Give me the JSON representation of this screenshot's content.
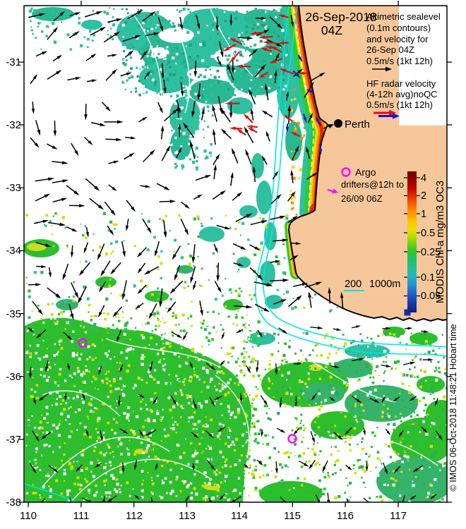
{
  "header": {
    "date": "26-Sep-2018",
    "time": "04Z"
  },
  "legends": {
    "altimetry": {
      "l1": "Altimetric sealevel",
      "l2": "(0.1m contours)",
      "l3": "and velocity for",
      "l4": "26-Sep 04Z",
      "l5": "0.5m/s (1kt 12h)"
    },
    "hf_radar": {
      "l1": "HF radar velocity",
      "l2": "(4-12h avg)noQC",
      "l3": "0.5m/s (1kt 12h)"
    },
    "argo_label": "Argo",
    "drifters": {
      "l1": "drifters@12h to",
      "l2": "26/09 06Z"
    },
    "isobaths": {
      "d200": "200",
      "d1000": "1000m"
    }
  },
  "map": {
    "city": "Perth"
  },
  "colorbar": {
    "label": "MODIS Chl-a mg/m3 OC3",
    "ticks": [
      "4",
      "2",
      "1",
      "0.5",
      "0.25",
      "0.1",
      "0.05"
    ]
  },
  "axes": {
    "x": [
      "110",
      "111",
      "112",
      "113",
      "114",
      "115",
      "116",
      "117"
    ],
    "y": [
      "-31",
      "-32",
      "-33",
      "-34",
      "-35",
      "-36",
      "-37",
      "-38"
    ]
  },
  "credit": "© IMOS 06-Oct-2018 11:48:21 Hobart time",
  "colors": {
    "land": "#F5C79A",
    "ocean": "#FFFFFF",
    "chl_green": "#2CBE2C",
    "chl_green2": "#35B36A",
    "chl_teal": "#2EC0A0",
    "chl_teal2": "#28B894",
    "isobath": "#00E6E6",
    "vector": "#000000",
    "hf_vector": "#E01010",
    "hf_vector2": "#1515D0",
    "drifter": "#FF00FF",
    "date_text": "#96301C"
  }
}
